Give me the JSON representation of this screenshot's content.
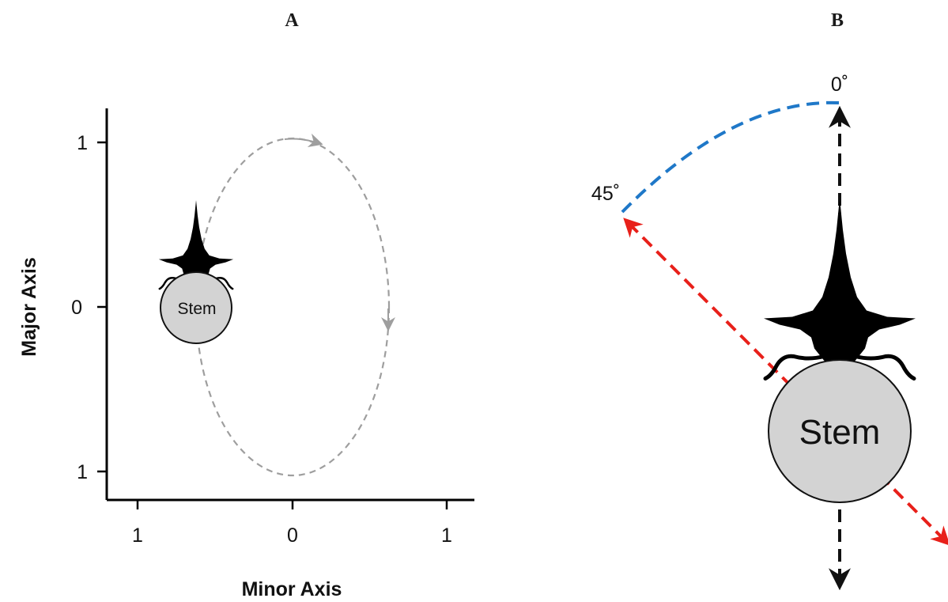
{
  "panel_a": {
    "label": "A",
    "x_axis_title": "Minor Axis",
    "y_axis_title": "Major Axis",
    "x_ticks": [
      "1",
      "0",
      "1"
    ],
    "y_ticks": [
      "1",
      "0",
      "1"
    ],
    "stem_label": "Stem",
    "path_color": "#9e9e9e"
  },
  "panel_b": {
    "label": "B",
    "stem_label": "Stem",
    "angle_top": "0˚",
    "angle_left": "45˚",
    "arc_color": "#1f78c8",
    "red_arrow_color": "#e8201a",
    "black_arrow_color": "#111111"
  },
  "colors": {
    "stem_fill": "#d3d3d3",
    "insect_fill": "#000000"
  }
}
